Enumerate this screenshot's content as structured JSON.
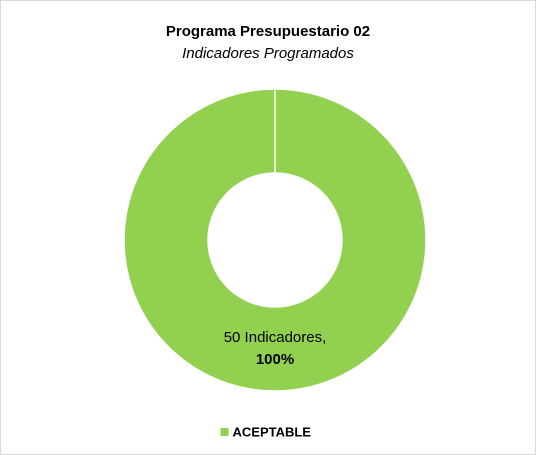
{
  "chart_data": {
    "type": "donut",
    "title": "Programa Presupuestario 02",
    "subtitle": "Indicadores Programados",
    "categories": [
      "ACEPTABLE"
    ],
    "values": [
      50
    ],
    "value_labels": [
      "50 Indicadores,"
    ],
    "percents": [
      100
    ],
    "percent_labels": [
      "100%"
    ],
    "series": [
      {
        "name": "ACEPTABLE",
        "color": "#92d050"
      }
    ],
    "legend": "bottom"
  }
}
